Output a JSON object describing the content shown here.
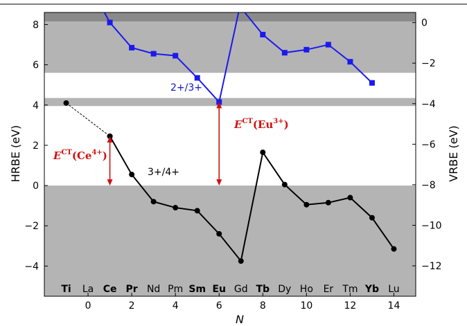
{
  "chart_data": {
    "type": "line",
    "title": "",
    "xlabel": "N",
    "ylabel_left": "HRBE (eV)",
    "ylabel_right": "VRBE (eV)",
    "xlim": [
      -2,
      15
    ],
    "ylim_left": [
      -5.5,
      8.6
    ],
    "ylim_right": [
      -13.5,
      0.5
    ],
    "xticks": [
      0,
      2,
      4,
      6,
      8,
      10,
      12,
      14
    ],
    "yticks_left": [
      -4,
      -2,
      0,
      2,
      4,
      6,
      8
    ],
    "yticks_right": [
      0,
      -2,
      -4,
      -6,
      -8,
      -10,
      -12
    ],
    "element_labels": [
      {
        "n": -1,
        "label": "Ti",
        "bold": true
      },
      {
        "n": 0,
        "label": "La",
        "bold": false
      },
      {
        "n": 1,
        "label": "Ce",
        "bold": true
      },
      {
        "n": 2,
        "label": "Pr",
        "bold": true
      },
      {
        "n": 3,
        "label": "Nd",
        "bold": false
      },
      {
        "n": 4,
        "label": "Pm",
        "bold": false
      },
      {
        "n": 5,
        "label": "Sm",
        "bold": true
      },
      {
        "n": 6,
        "label": "Eu",
        "bold": true
      },
      {
        "n": 7,
        "label": "Gd",
        "bold": false
      },
      {
        "n": 8,
        "label": "Tb",
        "bold": true
      },
      {
        "n": 9,
        "label": "Dy",
        "bold": false
      },
      {
        "n": 10,
        "label": "Ho",
        "bold": false
      },
      {
        "n": 11,
        "label": "Er",
        "bold": false
      },
      {
        "n": 12,
        "label": "Tm",
        "bold": false
      },
      {
        "n": 13,
        "label": "Yb",
        "bold": true
      },
      {
        "n": 14,
        "label": "Lu",
        "bold": false
      }
    ],
    "series": [
      {
        "label": "2+/3+",
        "color": "#1a1aee",
        "marker": "square",
        "x": [
          0.6,
          1,
          2,
          3,
          4,
          5,
          6,
          6.95,
          8,
          9,
          10,
          11,
          12,
          13
        ],
        "y": [
          8.9,
          8.1,
          6.85,
          6.55,
          6.45,
          5.35,
          4.15,
          8.9,
          7.5,
          6.6,
          6.75,
          7.0,
          6.15,
          5.1
        ],
        "marker_mask": [
          false,
          true,
          true,
          true,
          true,
          true,
          true,
          false,
          true,
          true,
          true,
          true,
          true,
          true
        ]
      },
      {
        "label": "3+/4+",
        "color": "#000000",
        "marker": "circle",
        "x": [
          1,
          2,
          3,
          4,
          5,
          6,
          7,
          8,
          9,
          10,
          11,
          12,
          13,
          14
        ],
        "y": [
          2.45,
          0.55,
          -0.8,
          -1.1,
          -1.25,
          -2.4,
          -3.75,
          1.65,
          0.05,
          -0.95,
          -0.85,
          -0.6,
          -1.6,
          -3.15
        ]
      },
      {
        "label": "Ti",
        "color": "#000000",
        "marker": "circle",
        "dashed": true,
        "x": [
          -1,
          1
        ],
        "y": [
          4.1,
          2.45
        ]
      }
    ],
    "bands": [
      {
        "y0": 8.15,
        "y1": 8.6,
        "color": "#8a8a8a"
      },
      {
        "y0": 5.6,
        "y1": 8.15,
        "color": "#b4b4b4"
      },
      {
        "y0": 3.95,
        "y1": 4.35,
        "color": "#b4b4b4"
      },
      {
        "y0": -5.5,
        "y1": 0,
        "color": "#b4b4b4"
      }
    ],
    "annotations": {
      "redox_2_3": "2+/3+",
      "redox_3_4": "3+/4+",
      "ect_eu_prefix": "E",
      "ect_eu_sup": "CT",
      "ect_eu_text": "(Eu",
      "ect_eu_charge": "3+",
      "ect_eu_close": ")",
      "ect_ce_prefix": "E",
      "ect_ce_sup": "CT",
      "ect_ce_text": "(Ce",
      "ect_ce_charge": "4+",
      "ect_ce_close": ")"
    },
    "arrows": [
      {
        "x": 6,
        "y_from": 0,
        "y_to": 4.15,
        "color": "#d01010"
      },
      {
        "x": 1,
        "y_from": 0,
        "y_to": 2.45,
        "color": "#d01010"
      }
    ]
  }
}
